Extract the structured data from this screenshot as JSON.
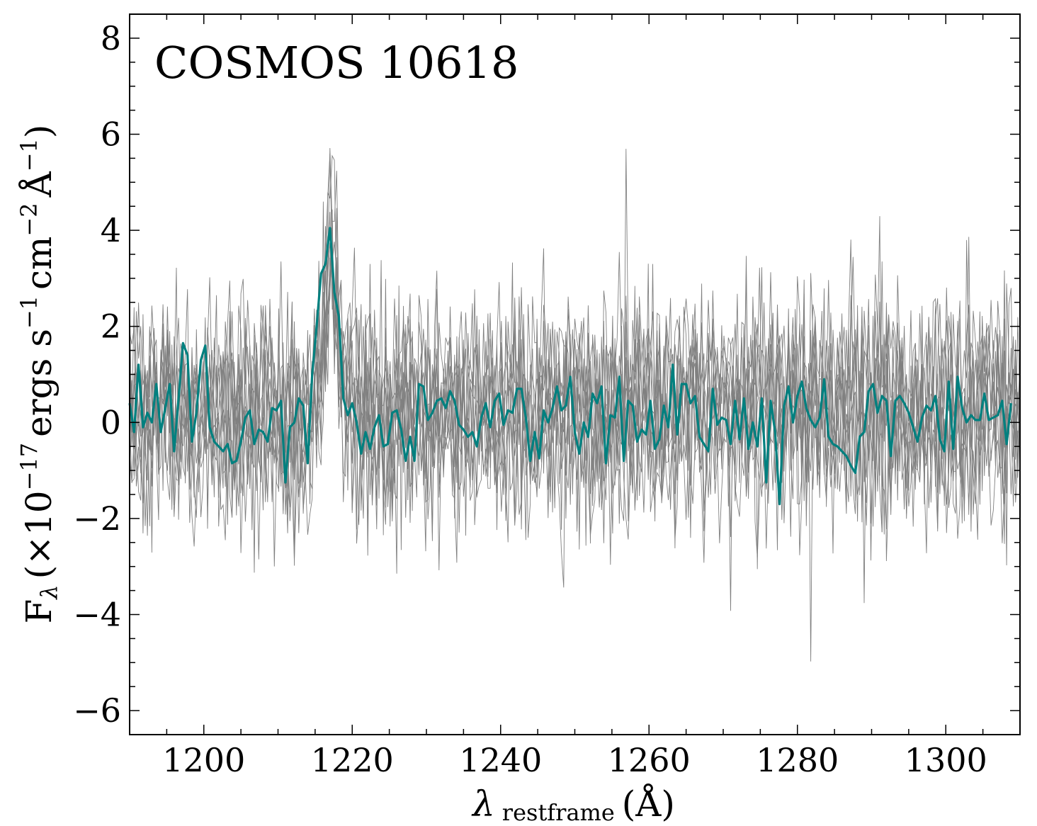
{
  "chart_data": {
    "type": "line",
    "title": "COSMOS 10618",
    "xlabel": {
      "lambda": "λ",
      "sub": "restframe",
      "rest": "(Å)"
    },
    "ylabel": {
      "base": "F",
      "sub": "λ",
      "open": "(×10",
      "exp17": "−17",
      "units1": "ergs s",
      "exp1": "−1",
      "units2": "cm",
      "exp2": "−2",
      "units3": "Å",
      "exp3": "−1",
      "close": ")"
    },
    "xlim": [
      1190,
      1310
    ],
    "ylim": [
      -6.5,
      8.5
    ],
    "xticks": [
      1200,
      1220,
      1240,
      1260,
      1280,
      1300
    ],
    "xtick_labels": [
      "1200",
      "1220",
      "1240",
      "1260",
      "1280",
      "1300"
    ],
    "yticks": [
      -6,
      -4,
      -2,
      0,
      2,
      4,
      6,
      8
    ],
    "ytick_labels": [
      "−6",
      "−4",
      "−2",
      "0",
      "2",
      "4",
      "6",
      "8"
    ],
    "grid": false,
    "colors": {
      "mean": "#00807f",
      "individual": "#808080",
      "axis": "#000000"
    },
    "series": [
      {
        "name": "mean",
        "x_start": 1190.0,
        "x_step": 0.6,
        "values": [
          0.4,
          -0.2,
          1.2,
          -0.1,
          0.2,
          0.0,
          0.8,
          -0.2,
          0.3,
          0.8,
          -0.6,
          0.5,
          1.65,
          1.4,
          -0.4,
          0.2,
          1.3,
          1.6,
          -0.1,
          -0.4,
          -0.5,
          -0.6,
          -0.45,
          -0.85,
          -0.8,
          -0.4,
          0.1,
          0.25,
          -0.45,
          -0.15,
          -0.2,
          -0.4,
          0.3,
          0.25,
          0.45,
          -1.25,
          -0.1,
          0.0,
          0.5,
          0.35,
          -0.85,
          1.0,
          2.0,
          3.1,
          3.3,
          4.05,
          2.7,
          2.2,
          0.5,
          0.15,
          0.4,
          0.0,
          -0.65,
          -0.2,
          -0.55,
          -0.1,
          0.15,
          -0.5,
          -0.45,
          0.2,
          0.25,
          -0.15,
          -0.8,
          -0.3,
          -0.8,
          0.8,
          0.75,
          0.05,
          0.2,
          0.45,
          0.5,
          0.3,
          0.65,
          0.45,
          -0.05,
          -0.15,
          -0.3,
          -0.2,
          -0.5,
          0.1,
          0.4,
          -0.1,
          0.45,
          0.6,
          -0.05,
          0.25,
          0.2,
          0.7,
          0.7,
          0.1,
          -0.8,
          -0.2,
          -0.75,
          0.25,
          0.0,
          0.3,
          0.75,
          0.25,
          0.35,
          0.95,
          -0.2,
          -0.65,
          0.0,
          -0.3,
          0.6,
          0.4,
          0.75,
          -0.85,
          0.15,
          0.1,
          0.95,
          -0.8,
          0.45,
          0.35,
          -0.4,
          -0.15,
          -0.25,
          0.45,
          -0.55,
          -0.35,
          0.35,
          -0.1,
          1.2,
          -0.25,
          0.8,
          0.8,
          0.4,
          0.55,
          -0.3,
          -0.45,
          -0.6,
          0.7,
          -0.05,
          0.1,
          0.05,
          -0.45,
          0.45,
          -0.35,
          0.5,
          -0.55,
          0.0,
          -0.5,
          0.5,
          -1.25,
          0.45,
          -0.2,
          -1.7,
          0.35,
          0.75,
          0.0,
          0.55,
          0.85,
          0.3,
          0.05,
          -0.1,
          0.1,
          0.9,
          -0.3,
          -0.45,
          -0.5,
          -0.6,
          -0.7,
          -0.9,
          -1.05,
          -0.3,
          -0.2,
          0.65,
          0.8,
          0.2,
          0.55,
          0.45,
          -0.7,
          0.45,
          0.55,
          0.4,
          0.2,
          -0.1,
          -0.4,
          0.1,
          0.35,
          0.25,
          0.55,
          -0.35,
          -0.6,
          0.85,
          -0.55,
          0.95,
          0.3,
          0.0,
          0.15,
          0.05,
          0.05,
          0.6,
          0.05,
          0.1,
          0.15,
          0.45,
          -0.45,
          0.4
        ]
      },
      {
        "name": "individual-1",
        "seed": 11,
        "amplitude": 1.4
      },
      {
        "name": "individual-2",
        "seed": 23,
        "amplitude": 1.5
      },
      {
        "name": "individual-3",
        "seed": 37,
        "amplitude": 1.3
      },
      {
        "name": "individual-4",
        "seed": 41,
        "amplitude": 1.6
      },
      {
        "name": "individual-5",
        "seed": 53,
        "amplitude": 1.4
      },
      {
        "name": "individual-6",
        "seed": 67,
        "amplitude": 1.5
      },
      {
        "name": "individual-7",
        "seed": 79,
        "amplitude": 1.3
      },
      {
        "name": "individual-8",
        "seed": 83,
        "amplitude": 1.7
      },
      {
        "name": "individual-9",
        "seed": 97,
        "amplitude": 1.4
      },
      {
        "name": "individual-10",
        "seed": 101,
        "amplitude": 1.5
      }
    ]
  }
}
